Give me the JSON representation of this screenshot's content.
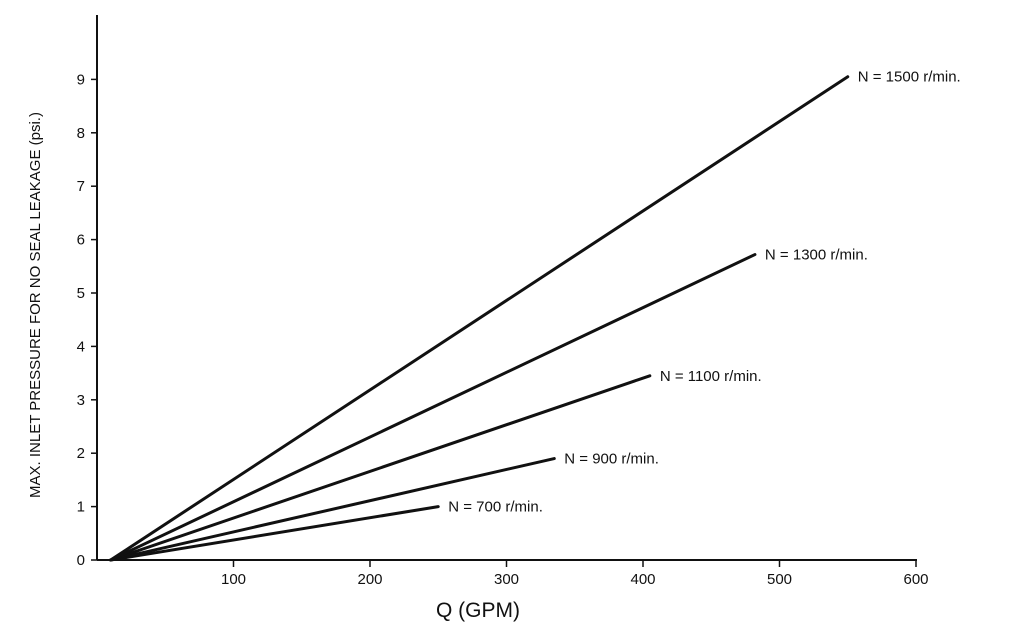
{
  "chart_data": {
    "type": "line",
    "title": "",
    "xlabel": "Q (GPM)",
    "ylabel": "MAX. INLET PRESSURE FOR NO SEAL LEAKAGE (psi.)",
    "xlim": [
      0,
      600
    ],
    "ylim": [
      0,
      10
    ],
    "x_ticks": [
      100,
      200,
      300,
      400,
      500,
      600
    ],
    "y_ticks": [
      0,
      1,
      2,
      3,
      4,
      5,
      6,
      7,
      8,
      9
    ],
    "grid": false,
    "series": [
      {
        "name": "N = 700 r/min.",
        "points": [
          [
            10,
            0
          ],
          [
            250,
            1.0
          ]
        ]
      },
      {
        "name": "N = 900 r/min.",
        "points": [
          [
            10,
            0
          ],
          [
            335,
            1.9
          ]
        ]
      },
      {
        "name": "N = 1100 r/min.",
        "points": [
          [
            10,
            0
          ],
          [
            405,
            3.45
          ]
        ]
      },
      {
        "name": "N = 1300 r/min.",
        "points": [
          [
            10,
            0
          ],
          [
            482,
            5.72
          ]
        ]
      },
      {
        "name": "N = 1500 r/min.",
        "points": [
          [
            10,
            0
          ],
          [
            550,
            9.05
          ]
        ]
      }
    ]
  }
}
